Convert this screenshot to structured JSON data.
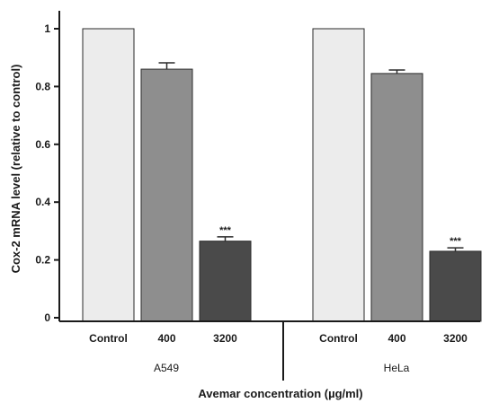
{
  "chart_data": {
    "type": "bar",
    "ylabel": "Cox-2 mRNA level (relative to control)",
    "xlabel": "Avemar concentration (µg/ml)",
    "ylim": [
      0,
      1.05
    ],
    "yticks": [
      "0",
      "0.2",
      "0.4",
      "0.6",
      "0.8",
      "1"
    ],
    "grid": false,
    "groups": [
      {
        "name": "A549",
        "categories": [
          "Control",
          "400",
          "3200"
        ],
        "values": [
          1.0,
          0.86,
          0.265
        ],
        "errors": [
          0,
          0.022,
          0.015
        ],
        "significance": [
          "",
          "",
          "***"
        ]
      },
      {
        "name": "HeLa",
        "categories": [
          "Control",
          "400",
          "3200"
        ],
        "values": [
          1.0,
          0.845,
          0.23
        ],
        "errors": [
          0,
          0.012,
          0.012
        ],
        "significance": [
          "",
          "",
          "***"
        ]
      }
    ],
    "bar_colors": [
      "#ececec",
      "#8e8e8e",
      "#4a4a4a"
    ]
  }
}
